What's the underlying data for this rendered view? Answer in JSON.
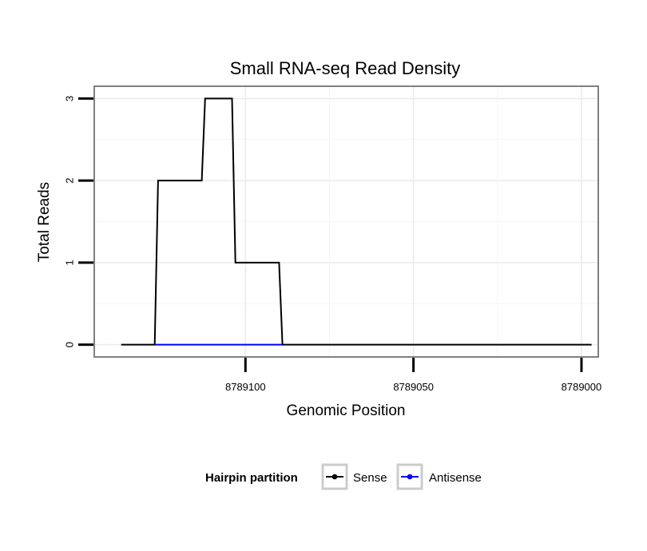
{
  "chart_data": {
    "type": "line",
    "title": "Small RNA-seq Read Density",
    "xlabel": "Genomic Position",
    "ylabel": "Total Reads",
    "x_axis_reversed": true,
    "xlim": [
      8789145,
      8788995
    ],
    "ylim": [
      -0.15,
      3.15
    ],
    "x_ticks": [
      8789100,
      8789050,
      8789000
    ],
    "x_tick_labels": [
      "8789100",
      "8789050",
      "8789000"
    ],
    "y_ticks": [
      0,
      1,
      2,
      3
    ],
    "y_tick_labels": [
      "0",
      "1",
      "2",
      "3"
    ],
    "grid": true,
    "legend": {
      "title": "Hairpin partition",
      "position": "bottom"
    },
    "series": [
      {
        "name": "Sense",
        "color": "#000000",
        "x": [
          8789137,
          8789127,
          8789126,
          8789113,
          8789112,
          8789104,
          8789103,
          8789090,
          8789089,
          8789086,
          8789085,
          8788997
        ],
        "y": [
          0,
          0,
          2,
          2,
          3,
          3,
          1,
          1,
          0,
          0,
          0,
          0
        ]
      },
      {
        "name": "Antisense",
        "color": "#0000ff",
        "x": [
          8789127,
          8789089
        ],
        "y": [
          0,
          0
        ]
      }
    ]
  }
}
